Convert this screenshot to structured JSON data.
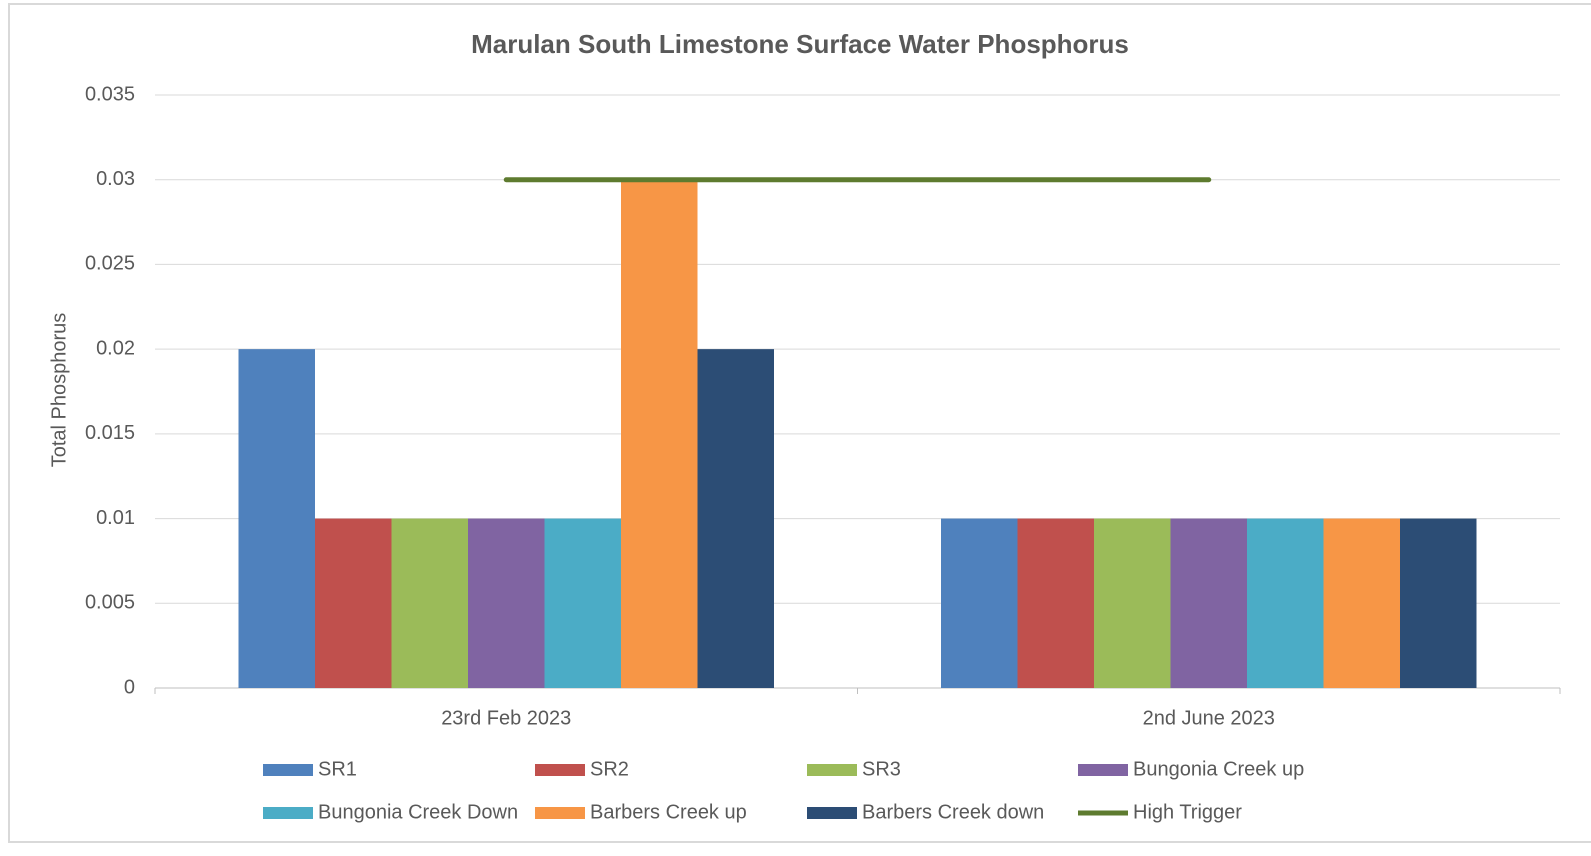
{
  "chart_data": {
    "type": "bar",
    "title": "Marulan South Limestone Surface Water Phosphorus",
    "ylabel": "Total Phosphorus",
    "categories": [
      "23rd Feb 2023",
      "2nd June 2023"
    ],
    "series": [
      {
        "name": "SR1",
        "color": "#4f81bd",
        "values": [
          0.02,
          0.01
        ]
      },
      {
        "name": "SR2",
        "color": "#c0504d",
        "values": [
          0.01,
          0.01
        ]
      },
      {
        "name": "SR3",
        "color": "#9bbb59",
        "values": [
          0.01,
          0.01
        ]
      },
      {
        "name": "Bungonia Creek up",
        "color": "#8064a2",
        "values": [
          0.01,
          0.01
        ]
      },
      {
        "name": "Bungonia Creek Down",
        "color": "#4bacc6",
        "values": [
          0.01,
          0.01
        ]
      },
      {
        "name": "Barbers Creek up",
        "color": "#f79646",
        "values": [
          0.03,
          0.01
        ]
      },
      {
        "name": "Barbers Creek down",
        "color": "#2c4d75",
        "values": [
          0.02,
          0.01
        ]
      },
      {
        "name": "High Trigger",
        "color": "#5e7b2f",
        "type": "line",
        "values": [
          0.03,
          0.03
        ]
      }
    ],
    "ylim": [
      0,
      0.035
    ],
    "yticks": [
      0,
      0.005,
      0.01,
      0.015,
      0.02,
      0.025,
      0.03,
      0.035
    ],
    "grid": true
  }
}
